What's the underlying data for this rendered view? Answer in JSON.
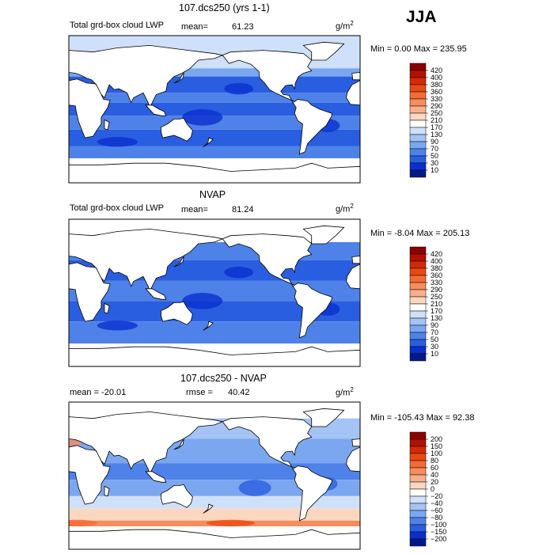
{
  "season": "JJA",
  "panels": [
    {
      "title": "107.dcs250 (yrs 1-1)",
      "left_label": "Total grd-box cloud LWP",
      "stat_label": "mean=",
      "stat_value": "61.23",
      "units_base": "g/m",
      "units_exp": "2",
      "minmax": "Min =    0.00 Max = 235.95",
      "levels": [
        "420",
        "400",
        "380",
        "360",
        "330",
        "290",
        "250",
        "210",
        "170",
        "130",
        "90",
        "70",
        "50",
        "30",
        "10"
      ],
      "palette": "absolute"
    },
    {
      "title": "NVAP",
      "left_label": "Total grd-box cloud LWP",
      "stat_label": "mean=",
      "stat_value": "81.24",
      "units_base": "g/m",
      "units_exp": "2",
      "minmax": "Min =  -8.04 Max = 205.13",
      "levels": [
        "420",
        "400",
        "380",
        "360",
        "330",
        "290",
        "250",
        "210",
        "170",
        "130",
        "90",
        "70",
        "50",
        "30",
        "10"
      ],
      "palette": "absolute"
    },
    {
      "title": "107.dcs250 - NVAP",
      "left_label": "mean = -20.01",
      "stat_label": "rmse =",
      "stat_value": "40.42",
      "units_base": "g/m",
      "units_exp": "2",
      "minmax": "Min = -105.43 Max =  92.38",
      "levels": [
        "200",
        "150",
        "100",
        "80",
        "60",
        "40",
        "20",
        "0",
        "−20",
        "−40",
        "−60",
        "−80",
        "−100",
        "−150",
        "−200"
      ],
      "palette": "difference"
    }
  ],
  "colors": {
    "absolute": [
      "#8b0000",
      "#b31000",
      "#d42a00",
      "#ea4a10",
      "#f56a35",
      "#f78c5c",
      "#f9b08a",
      "#fbd7c0",
      "#ffffff",
      "#cfe0fa",
      "#a4c4f5",
      "#7ba7f0",
      "#4f82e8",
      "#2a5ee0",
      "#0a2fcf",
      "#001a8c"
    ],
    "difference": [
      "#8b0000",
      "#b31000",
      "#d42a00",
      "#ea4a10",
      "#f56a35",
      "#f78c5c",
      "#f9b08a",
      "#fbd7c0",
      "#ffffff",
      "#cfe0fa",
      "#a4c4f5",
      "#7ba7f0",
      "#4f82e8",
      "#2a5ee0",
      "#0a2fcf",
      "#001a8c"
    ]
  }
}
